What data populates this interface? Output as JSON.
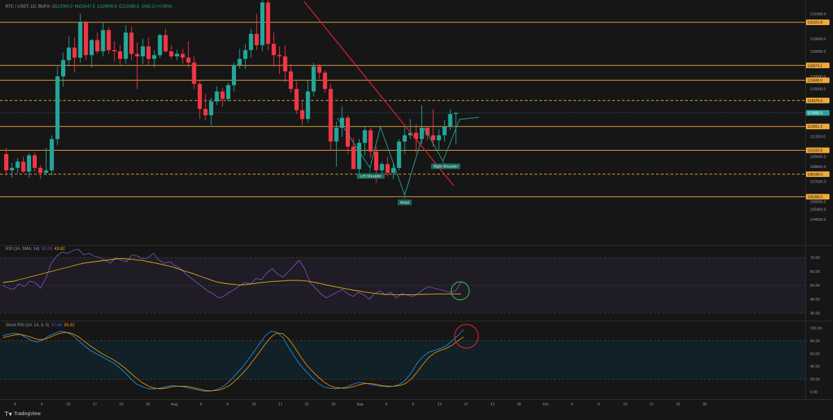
{
  "header": {
    "symbol": "BTC / USDT, 1D, BloFin",
    "open_label": "O",
    "open": "113000.0",
    "high_label": "H",
    "high": "113147.5",
    "low_label": "L",
    "low": "110605.8",
    "close_label": "C",
    "close": "113085.5",
    "change": "1062.3 (+0.95%)"
  },
  "rsi_header": {
    "label": "RSI (14, SMA, 14)",
    "rsi": "52.03",
    "sma": "43.82"
  },
  "stoch_header": {
    "label": "Stoch RSI (14, 14, 3, 3)",
    "k": "97.68",
    "d": "85.92"
  },
  "footer": {
    "brand": "TradingView"
  },
  "colors": {
    "up": "#26a69a",
    "down": "#f23645",
    "level": "#f0a93a",
    "trendline": "#e0202e",
    "pattern": "#26a69a",
    "rsi": "#7e57c2",
    "rsi_ma": "#f0b90b",
    "stoch_k": "#2196f3",
    "stoch_d": "#ff9800",
    "circle_green": "#26c04a",
    "circle_red": "#e0202e"
  },
  "chart_data": [
    {
      "type": "candlestick",
      "title": "BTC / USDT, 1D, BloFin",
      "y_ticks": [
        "121000.0",
        "119000.0",
        "118000.0",
        "116000.0",
        "115000.0",
        "111200.0",
        "109600.0",
        "108800.0",
        "107600.0",
        "106000.0",
        "105400.0",
        "104600.0"
      ],
      "x_ticks": [
        "5",
        "9",
        "13",
        "17",
        "21",
        "25",
        "Aug",
        "5",
        "9",
        "13",
        "17",
        "21",
        "25",
        "Sep",
        "5",
        "9",
        "13",
        "17",
        "21",
        "25",
        "Oct",
        "5",
        "9",
        "13",
        "17",
        "21",
        "25"
      ],
      "price_levels": [
        {
          "label": "120321.8",
          "value": 120321.8,
          "style": "solid"
        },
        {
          "label": "116874.1",
          "value": 116874.1,
          "style": "solid"
        },
        {
          "label": "115688.9",
          "value": 115688.9,
          "style": "solid"
        },
        {
          "label": "114075.9",
          "value": 114075.9,
          "style": "dashed"
        },
        {
          "label": "112001.3",
          "value": 112001.3,
          "style": "solid"
        },
        {
          "label": "110100.8",
          "value": 110100.8,
          "style": "solid"
        },
        {
          "label": "108196.9",
          "value": 108196.9,
          "style": "dashed"
        },
        {
          "label": "106396.0",
          "value": 106396.0,
          "style": "solid"
        }
      ],
      "current_price": {
        "label": "113085.5",
        "value": 113085.5
      },
      "annotations": [
        "Left Shoulder",
        "Head",
        "Right Shoulder"
      ],
      "candles": [
        [
          109800,
          110300,
          108100,
          108500
        ],
        [
          108500,
          109100,
          107900,
          108700
        ],
        [
          108700,
          109500,
          108300,
          109200
        ],
        [
          109200,
          109600,
          108300,
          108400
        ],
        [
          108400,
          109900,
          107900,
          109700
        ],
        [
          109700,
          109900,
          108400,
          108700
        ],
        [
          108700,
          108900,
          107800,
          108300
        ],
        [
          108300,
          110300,
          108100,
          108500
        ],
        [
          108500,
          111300,
          108100,
          111000
        ],
        [
          111000,
          116800,
          110500,
          116000
        ],
        [
          116000,
          117900,
          115200,
          117300
        ],
        [
          117300,
          119200,
          116800,
          118300
        ],
        [
          118300,
          119100,
          116300,
          117500
        ],
        [
          117500,
          121000,
          117100,
          120300
        ],
        [
          120300,
          120400,
          117300,
          117700
        ],
        [
          117700,
          119000,
          116700,
          118900
        ],
        [
          118900,
          119500,
          117800,
          118000
        ],
        [
          118000,
          120300,
          117600,
          119700
        ],
        [
          119700,
          119900,
          117800,
          118100
        ],
        [
          118100,
          118800,
          117200,
          118000
        ],
        [
          118000,
          118500,
          116900,
          117400
        ],
        [
          117400,
          120100,
          117000,
          119500
        ],
        [
          119500,
          120000,
          117300,
          117800
        ],
        [
          117800,
          118700,
          115000,
          117600
        ],
        [
          117600,
          119000,
          117000,
          118400
        ],
        [
          118400,
          119100,
          116900,
          117400
        ],
        [
          117400,
          118100,
          116700,
          117700
        ],
        [
          117700,
          119400,
          117500,
          119300
        ],
        [
          119300,
          119800,
          117900,
          118000
        ],
        [
          118000,
          118500,
          117400,
          117600
        ],
        [
          117600,
          118100,
          117300,
          117800
        ],
        [
          117800,
          118200,
          117000,
          117500
        ],
        [
          117500,
          118800,
          116700,
          117100
        ],
        [
          117100,
          117600,
          115000,
          115400
        ],
        [
          115400,
          115700,
          112600,
          113400
        ],
        [
          113400,
          114600,
          112500,
          112900
        ],
        [
          112900,
          114300,
          112100,
          114000
        ],
        [
          114000,
          115200,
          113700,
          114800
        ],
        [
          114800,
          115100,
          113600,
          114200
        ],
        [
          114200,
          115500,
          114000,
          115300
        ],
        [
          115300,
          117100,
          114800,
          116900
        ],
        [
          116900,
          118200,
          116600,
          117400
        ],
        [
          117400,
          118600,
          116600,
          118100
        ],
        [
          118100,
          119800,
          117500,
          119400
        ],
        [
          119400,
          121000,
          118100,
          118500
        ],
        [
          118500,
          122200,
          118000,
          121900
        ],
        [
          121900,
          123300,
          118100,
          118600
        ],
        [
          118600,
          119500,
          116800,
          117700
        ],
        [
          117700,
          118400,
          116200,
          117600
        ],
        [
          117600,
          118500,
          115500,
          116400
        ],
        [
          116400,
          117000,
          114700,
          115000
        ],
        [
          115000,
          115600,
          113000,
          113300
        ],
        [
          113300,
          114100,
          112100,
          112600
        ],
        [
          112600,
          115700,
          112300,
          114800
        ],
        [
          114800,
          117100,
          114400,
          116800
        ],
        [
          116800,
          117000,
          115800,
          116300
        ],
        [
          116300,
          116500,
          114700,
          115000
        ],
        [
          115000,
          115400,
          110100,
          110800
        ],
        [
          110800,
          112400,
          108800,
          111900
        ],
        [
          111900,
          113600,
          111200,
          112700
        ],
        [
          112700,
          112900,
          109800,
          110400
        ],
        [
          110400,
          111100,
          108600,
          108600
        ],
        [
          108600,
          111000,
          108200,
          110700
        ],
        [
          110700,
          112000,
          109700,
          111700
        ],
        [
          111700,
          111900,
          109500,
          110000
        ],
        [
          110000,
          110400,
          107500,
          108500
        ],
        [
          108500,
          109200,
          108200,
          109000
        ],
        [
          109000,
          109600,
          108000,
          108300
        ],
        [
          108300,
          109100,
          107800,
          108700
        ],
        [
          108700,
          111000,
          108500,
          110800
        ],
        [
          110800,
          112000,
          109800,
          111300
        ],
        [
          111300,
          112600,
          111000,
          111500
        ],
        [
          111500,
          112200,
          109900,
          111000
        ],
        [
          111000,
          113700,
          110600,
          111900
        ],
        [
          111900,
          112000,
          110900,
          111300
        ],
        [
          111300,
          113400,
          110400,
          110900
        ],
        [
          110900,
          111800,
          110100,
          111300
        ],
        [
          111300,
          112500,
          110800,
          112000
        ],
        [
          112000,
          113400,
          111700,
          113000
        ],
        [
          113000,
          113150,
          110600,
          113085
        ]
      ]
    },
    {
      "type": "line",
      "title": "RSI (14, SMA, 14)",
      "y_ticks": [
        "70.00",
        "60.00",
        "50.00",
        "40.00",
        "30.00"
      ],
      "ylim": [
        28,
        78
      ],
      "series": [
        {
          "name": "RSI",
          "values": [
            50,
            48,
            47,
            51,
            49,
            53,
            52,
            48,
            55,
            66,
            71,
            74,
            73,
            75,
            76,
            72,
            73,
            71,
            70,
            68,
            66,
            70,
            68,
            67,
            72,
            71,
            69,
            70,
            73,
            68,
            66,
            67,
            64,
            62,
            58,
            55,
            52,
            49,
            46,
            44,
            41,
            42,
            45,
            47,
            50,
            52,
            51,
            55,
            54,
            59,
            62,
            58,
            56,
            60,
            64,
            68,
            62,
            52,
            48,
            44,
            41,
            43,
            45,
            47,
            44,
            42,
            45,
            43,
            40,
            44,
            46,
            43,
            45,
            41,
            44,
            43,
            42,
            44,
            47,
            49,
            48,
            47,
            46,
            45,
            46,
            52
          ]
        },
        {
          "name": "SMA",
          "values": [
            52,
            52.5,
            53,
            54,
            55,
            56,
            57,
            58,
            59,
            60,
            61,
            62,
            63,
            64,
            65,
            66,
            66.5,
            67,
            67.5,
            68,
            68.5,
            69,
            69.3,
            69,
            68.7,
            68.2,
            67.8,
            67,
            66.3,
            65.5,
            64.6,
            63.8,
            62.6,
            61.2,
            60,
            58.8,
            57.4,
            56,
            54.7,
            53.3,
            52.2,
            51.5,
            51,
            50.6,
            50.3,
            50.5,
            51,
            51.5,
            52,
            52.4,
            52.8,
            53,
            53.2,
            53.5,
            53.6,
            53.5,
            53.3,
            52.7,
            52,
            51.2,
            50.3,
            49.5,
            48.8,
            48,
            47.3,
            46.5,
            46,
            45.3,
            44.8,
            44.2,
            43.8,
            43.5,
            43.4,
            43.3,
            43.2,
            43.3,
            43.3,
            43.4,
            43.5,
            43.6,
            43.7,
            43.8,
            43.8,
            43.8,
            43.8,
            43.82
          ]
        }
      ]
    },
    {
      "type": "line",
      "title": "Stoch RSI (14, 14, 3, 3)",
      "y_ticks": [
        "100.00",
        "80.00",
        "60.00",
        "40.00",
        "20.00",
        "0.00"
      ],
      "ylim": [
        -8,
        108
      ],
      "series": [
        {
          "name": "K",
          "values": [
            88,
            90,
            92,
            90,
            85,
            80,
            78,
            82,
            88,
            92,
            95,
            93,
            88,
            80,
            72,
            65,
            60,
            55,
            50,
            45,
            38,
            30,
            20,
            12,
            8,
            5,
            5,
            6,
            8,
            10,
            9,
            8,
            6,
            4,
            2,
            1,
            2,
            5,
            10,
            18,
            28,
            38,
            50,
            62,
            75,
            88,
            95,
            93,
            85,
            70,
            55,
            42,
            32,
            22,
            14,
            8,
            6,
            5,
            6,
            8,
            12,
            15,
            14,
            12,
            10,
            9,
            8,
            9,
            12,
            18,
            30,
            45,
            55,
            62,
            65,
            68,
            72,
            80,
            88,
            97.68
          ]
        },
        {
          "name": "D",
          "values": [
            85,
            87,
            89,
            90,
            88,
            85,
            82,
            82,
            85,
            89,
            92,
            93,
            91,
            86,
            79,
            72,
            66,
            60,
            55,
            50,
            44,
            37,
            29,
            21,
            14,
            9,
            6,
            5,
            6,
            8,
            9,
            9,
            8,
            6,
            4,
            2,
            2,
            3,
            6,
            11,
            19,
            28,
            38,
            50,
            62,
            75,
            86,
            92,
            91,
            83,
            70,
            56,
            43,
            33,
            24,
            16,
            10,
            7,
            6,
            6,
            8,
            11,
            13,
            13,
            12,
            10,
            9,
            9,
            10,
            13,
            20,
            31,
            43,
            54,
            61,
            65,
            68,
            73,
            80,
            85.92
          ]
        }
      ]
    }
  ]
}
